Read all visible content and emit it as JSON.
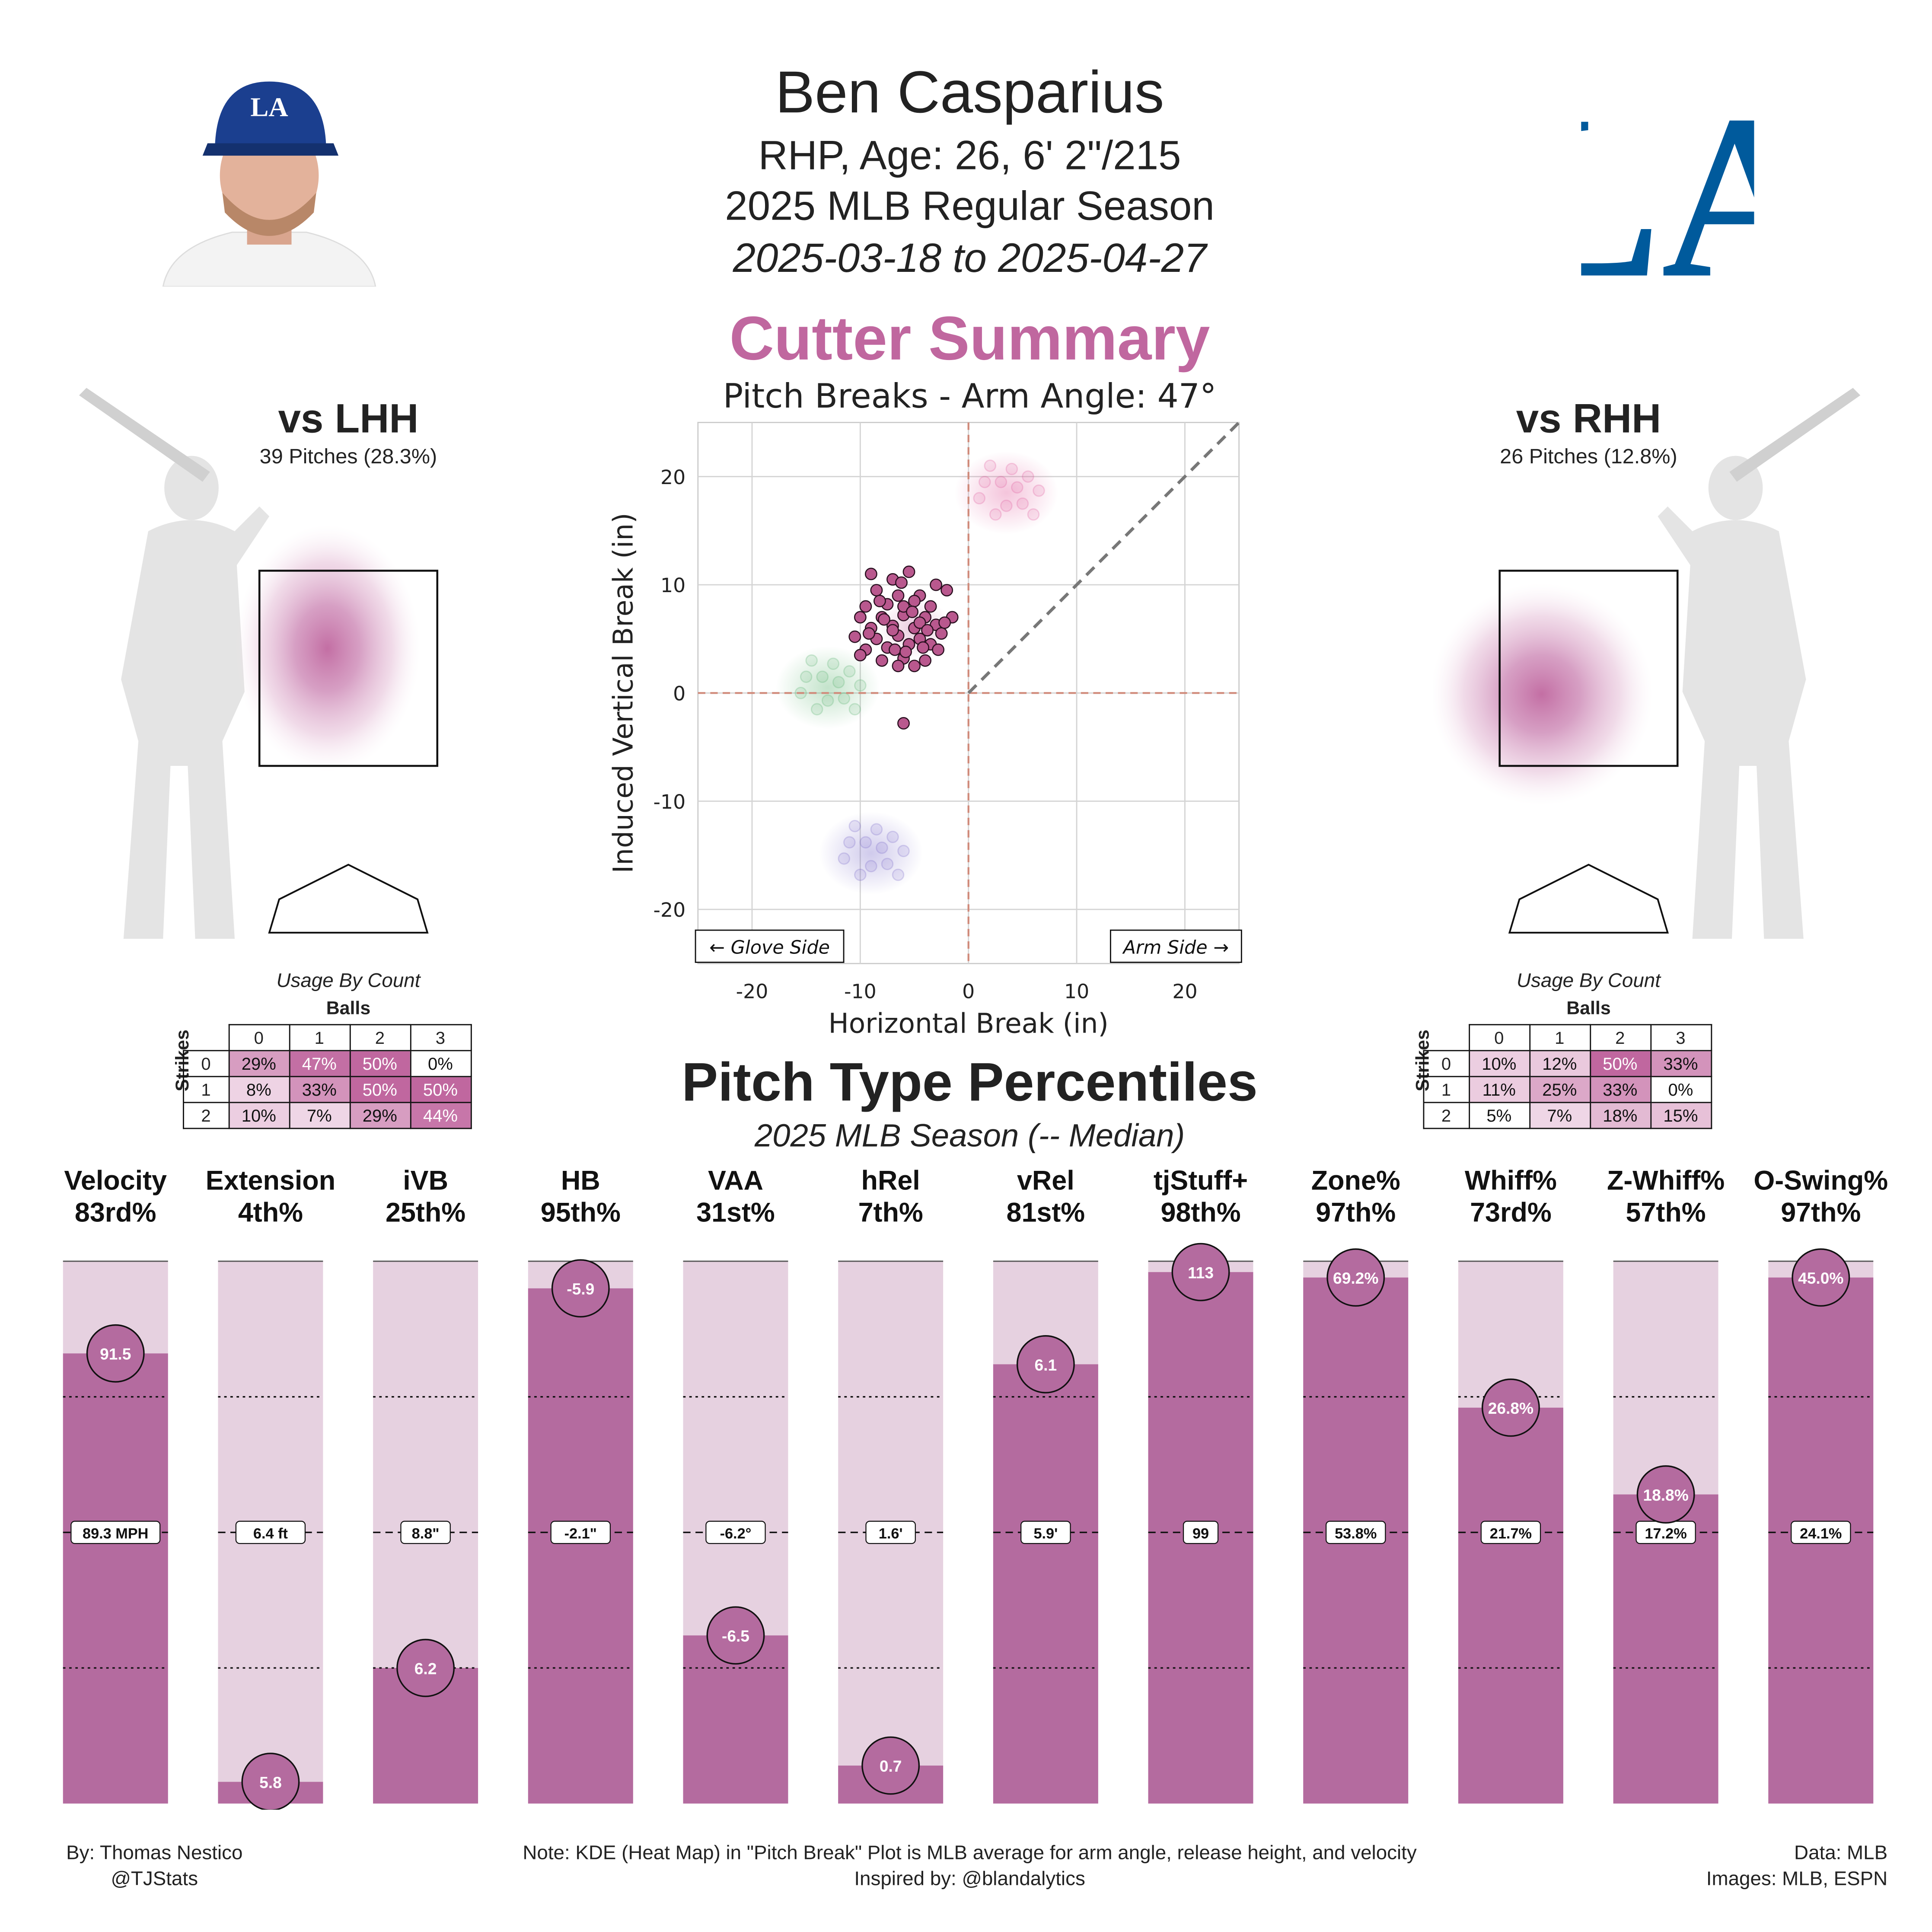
{
  "header": {
    "name": "Ben Casparius",
    "bio": "RHP, Age: 26, 6' 2\"/215",
    "season": "2025 MLB Regular Season",
    "dates": "2025-03-18 to 2025-04-27",
    "team_logo_text": "LA",
    "cap_logo_text": "LA"
  },
  "summary_title": "Cutter Summary",
  "colors": {
    "accent": "#c0679f",
    "bar_fill": "#b46b9f",
    "bar_bg": "#e6d1e0",
    "cutter_point": "#b9588e"
  },
  "vs_lhh": {
    "title": "vs LHH",
    "pitches": "39 Pitches (28.3%)",
    "usage_title": "Usage By Count",
    "balls_label": "Balls",
    "strikes_label": "Strikes",
    "ball_cols": [
      "0",
      "1",
      "2",
      "3"
    ],
    "strike_rows": [
      "0",
      "1",
      "2"
    ],
    "cells": [
      [
        "29%",
        "47%",
        "50%",
        "0%"
      ],
      [
        "8%",
        "33%",
        "50%",
        "50%"
      ],
      [
        "10%",
        "7%",
        "29%",
        "44%"
      ]
    ],
    "cell_values": [
      [
        29,
        47,
        50,
        0
      ],
      [
        8,
        33,
        50,
        50
      ],
      [
        10,
        7,
        29,
        44
      ]
    ]
  },
  "vs_rhh": {
    "title": "vs RHH",
    "pitches": "26 Pitches (12.8%)",
    "usage_title": "Usage By Count",
    "balls_label": "Balls",
    "strikes_label": "Strikes",
    "ball_cols": [
      "0",
      "1",
      "2",
      "3"
    ],
    "strike_rows": [
      "0",
      "1",
      "2"
    ],
    "cells": [
      [
        "10%",
        "12%",
        "50%",
        "33%"
      ],
      [
        "11%",
        "25%",
        "33%",
        "0%"
      ],
      [
        "5%",
        "7%",
        "18%",
        "15%"
      ]
    ],
    "cell_values": [
      [
        10,
        12,
        50,
        33
      ],
      [
        11,
        25,
        33,
        0
      ],
      [
        5,
        7,
        18,
        15
      ]
    ]
  },
  "chart_data": [
    {
      "type": "scatter",
      "title": "Pitch Breaks - Arm Angle: 47°",
      "xlabel": "Horizontal Break (in)",
      "ylabel": "Induced Vertical Break (in)",
      "xlim": [
        -25,
        25
      ],
      "ylim": [
        -25,
        25
      ],
      "xticks": [
        -20,
        -10,
        0,
        10,
        20
      ],
      "yticks": [
        -20,
        -10,
        0,
        10,
        20
      ],
      "grid": true,
      "glove_side_label": "← Glove Side",
      "arm_side_label": "Arm Side →",
      "arm_angle_line": [
        [
          0,
          0
        ],
        [
          25,
          25
        ]
      ],
      "series": [
        {
          "color": "#b9588e",
          "points": [
            [
              -9,
              11
            ],
            [
              -7,
              10.5
            ],
            [
              -5.5,
              11.2
            ],
            [
              -3,
              10
            ],
            [
              -8.5,
              9.5
            ],
            [
              -6.5,
              9
            ],
            [
              -4.5,
              9
            ],
            [
              -2,
              9.5
            ],
            [
              -9.5,
              8
            ],
            [
              -7.5,
              8.2
            ],
            [
              -5,
              8.5
            ],
            [
              -3.5,
              8
            ],
            [
              -1.5,
              7
            ],
            [
              -10,
              7
            ],
            [
              -8,
              7
            ],
            [
              -6,
              7.2
            ],
            [
              -4,
              7
            ],
            [
              -9,
              6
            ],
            [
              -7,
              6.2
            ],
            [
              -5,
              6
            ],
            [
              -3,
              6.3
            ],
            [
              -2.5,
              5.5
            ],
            [
              -10.5,
              5.2
            ],
            [
              -8.5,
              5
            ],
            [
              -6.5,
              5.3
            ],
            [
              -4.5,
              5
            ],
            [
              -3.5,
              4.5
            ],
            [
              -9.5,
              4
            ],
            [
              -7.5,
              4.2
            ],
            [
              -5.5,
              4.5
            ],
            [
              -2.8,
              4
            ],
            [
              -10,
              3.5
            ],
            [
              -8,
              3
            ],
            [
              -6,
              3.2
            ],
            [
              -4,
              3
            ],
            [
              -6.5,
              2.5
            ],
            [
              -5,
              2.5
            ],
            [
              -7,
              5.8
            ],
            [
              -6,
              8
            ],
            [
              -4.5,
              6.5
            ],
            [
              -8.2,
              8.5
            ],
            [
              -5.2,
              7.5
            ],
            [
              -3.8,
              5.8
            ],
            [
              -6.8,
              4
            ],
            [
              -7.8,
              6.8
            ],
            [
              -2.2,
              6.5
            ],
            [
              -9.2,
              5.5
            ],
            [
              -5.8,
              3.8
            ],
            [
              -4.2,
              4.2
            ],
            [
              -6.2,
              10.2
            ],
            [
              -6,
              -2.8
            ]
          ]
        }
      ],
      "league_kde_clusters": [
        {
          "pitch": "fastball",
          "color": "#e0589a",
          "center": [
            3.5,
            18.5
          ]
        },
        {
          "pitch": "sweeper/slider",
          "color": "#55b06a",
          "center": [
            -13,
            0.5
          ]
        },
        {
          "pitch": "curveball",
          "color": "#7768c8",
          "center": [
            -9,
            -14.8
          ]
        },
        {
          "pitch": "cutter",
          "color": "#c0679f",
          "center": [
            -5,
            6
          ]
        }
      ]
    },
    {
      "type": "bar",
      "title": "Pitch Type Percentiles",
      "subtitle": "2025 MLB Season (-- Median)",
      "categories": [
        "Velocity",
        "Extension",
        "iVB",
        "HB",
        "VAA",
        "hRel",
        "vRel",
        "tjStuff+",
        "Zone%",
        "Whiff%",
        "Z-Whiff%",
        "O-Swing%"
      ],
      "percentile_labels": [
        "83rd%",
        "4th%",
        "25th%",
        "95th%",
        "31st%",
        "7th%",
        "81st%",
        "98th%",
        "97th%",
        "73rd%",
        "57th%",
        "97th%"
      ],
      "values": [
        83,
        4,
        25,
        95,
        31,
        7,
        81,
        98,
        97,
        73,
        57,
        97
      ],
      "value_labels": [
        "91.5",
        "5.8",
        "6.2",
        "-5.9",
        "-6.5",
        "0.7",
        "6.1",
        "113",
        "69.2%",
        "26.8%",
        "18.8%",
        "45.0%"
      ],
      "median_labels": [
        "89.3 MPH",
        "6.4 ft",
        "8.8\"",
        "-2.1\"",
        "-6.2°",
        "1.6'",
        "5.9'",
        "99",
        "53.8%",
        "21.7%",
        "17.2%",
        "24.1%"
      ],
      "ylim": [
        0,
        100
      ],
      "reference_lines": [
        25,
        50,
        75
      ]
    }
  ],
  "footer": {
    "author": "By: Thomas Nestico",
    "handle": "@TJStats",
    "note": "Note: KDE (Heat Map) in \"Pitch Break\" Plot is MLB average for arm angle, release height, and velocity",
    "inspired": "Inspired by: @blandalytics",
    "data_src": "Data: MLB",
    "images_src": "Images: MLB, ESPN"
  }
}
